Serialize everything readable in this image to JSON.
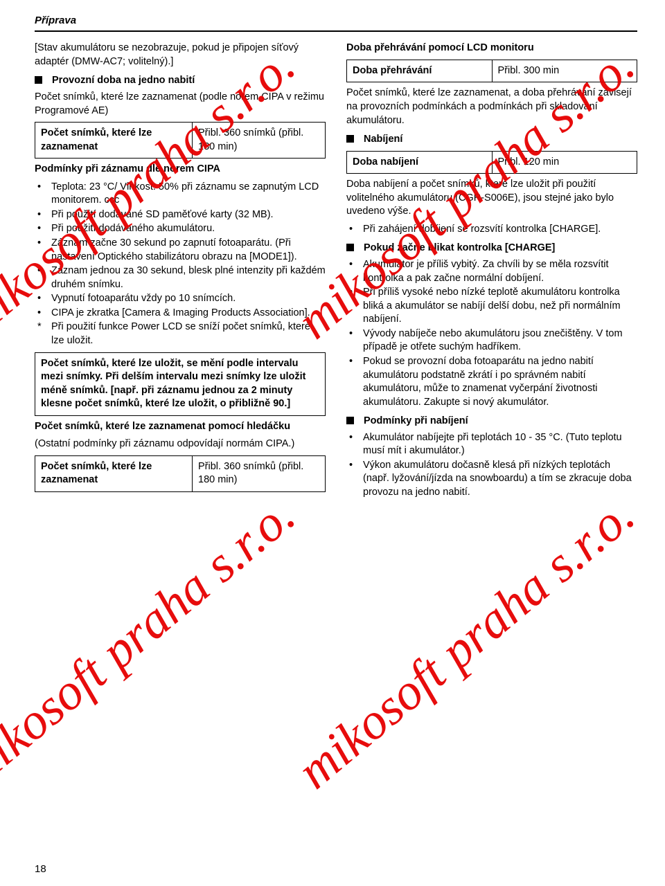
{
  "header": "Příprava",
  "watermark": "mikosoft praha s.r.o.",
  "pagenum": "18",
  "left": {
    "note": "[Stav akumulátoru se nezobrazuje, pokud je připojen síťový adaptér (DMW-AC7; volitelný).]",
    "h1": "Provozní doba na jedno nabití",
    "h1b": "Počet snímků, které lze zaznamenat (podle norem CIPA v režimu Programové AE)",
    "tbl1_l": "Počet snímků, které lze zaznamenat",
    "tbl1_r": "Přibl. 360 snímků (přibl. 180 min)",
    "cipa_h": "Podmínky při záznamu dle norem CIPA",
    "cipa": [
      "Teplota: 23 °C/ Vlhkost: 50% při záznamu se zapnutým LCD monitorem. ccc",
      "Při použití dodávané SD paměťové karty (32 MB).",
      "Při použití dodávaného akumulátoru.",
      "Záznam začne 30 sekund po zapnutí fotoaparátu. (Při nastavení Optického stabilizátoru obrazu na [MODE1]).",
      "Záznam jednou za 30 sekund, blesk plné intenzity při každém druhém snímku.",
      "Vypnutí fotoaparátu vždy po 10 snímcích.",
      "CIPA je zkratka [Camera & Imaging Products Association]."
    ],
    "star": "Při použití funkce Power LCD se sníží počet snímků, které lze uložit.",
    "box2": "Počet snímků, které lze uložit, se mění podle intervalu mezi snímky. Při delším intervalu mezi snímky lze uložit méně snímků. [např. při záznamu jednou za 2 minuty klesne počet snímků, které lze uložit, o přibližně 90.]",
    "vf_h": "Počet snímků, které lze zaznamenat pomocí hledáčku",
    "vf_p": "(Ostatní podmínky při záznamu odpovídají normám CIPA.)",
    "tbl2_l": "Počet snímků, které lze zaznamenat",
    "tbl2_r": "Přibl. 360 snímků (přibl. 180 min)"
  },
  "right": {
    "play_h": "Doba přehrávání pomocí LCD monitoru",
    "play_l": "Doba přehrávání",
    "play_r": "Přibl. 300 min",
    "p1": "Počet snímků, které lze zaznamenat, a doba přehrávání závisejí na provozních podmínkách a podmínkách při skladování akumulátoru.",
    "ch_h": "Nabíjení",
    "ch_l": "Doba nabíjení",
    "ch_r": "Přibl. 120 min",
    "p2": "Doba nabíjení a počet snímků, které lze uložit při použití volitelného akumulátoru (CGR-S006E), jsou stejné jako bylo uvedeno výše.",
    "b1": "Při zahájení dobíjení se rozsvítí kontrolka [CHARGE].",
    "blink_h": "Pokud začne blikat kontrolka [CHARGE]",
    "blink": [
      "Akumulátor je příliš vybitý. Za chvíli by se měla rozsvítit kontrolka a pak začne normální dobíjení.",
      "Při příliš vysoké nebo nízké teplotě akumulátoru kontrolka bliká a akumulátor se nabíjí delší dobu, než při normálním nabíjení.",
      "Vývody nabíječe nebo akumulátoru jsou znečištěny. V tom případě je otřete suchým hadříkem.",
      "Pokud se provozní doba fotoaparátu na jedno nabití akumulátoru podstatně zkrátí i po správném nabití akumulátoru, může to znamenat vyčerpání životnosti akumulátoru. Zakupte si nový akumulátor."
    ],
    "cond_h": "Podmínky při nabíjení",
    "cond": [
      "Akumulátor nabíjejte při teplotách 10 - 35 °C. (Tuto teplotu musí mít i akumulátor.)",
      "Výkon akumulátoru dočasně klesá při nízkých teplotách (např. lyžování/jízda na snowboardu) a tím se zkracuje doba provozu na jedno nabití."
    ]
  }
}
